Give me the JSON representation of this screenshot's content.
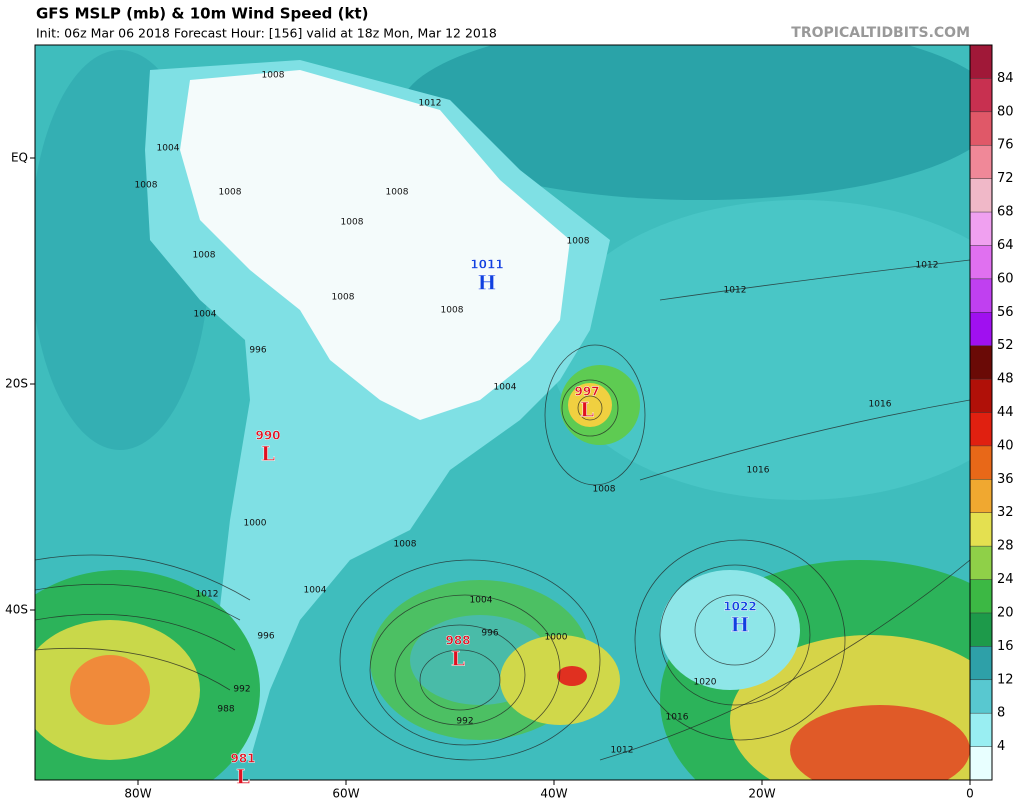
{
  "header": {
    "title": "GFS MSLP (mb) & 10m Wind Speed (kt)",
    "subtitle": "Init: 06z Mar 06 2018   Forecast Hour: [156]   valid at 18z Mon, Mar 12 2018",
    "site": "TROPICALTIDBITS.COM"
  },
  "axes": {
    "longitude": [
      "80W",
      "60W",
      "40W",
      "20W",
      "0"
    ],
    "latitude": [
      "EQ",
      "20S",
      "40S"
    ]
  },
  "colorbar": {
    "ticks": [
      4,
      8,
      12,
      16,
      20,
      24,
      28,
      32,
      36,
      40,
      44,
      48,
      52,
      56,
      60,
      64,
      68,
      72,
      76,
      80,
      84
    ]
  },
  "centers": [
    {
      "letter": "H",
      "value": 1011
    },
    {
      "letter": "L",
      "value": 997
    },
    {
      "letter": "L",
      "value": 990
    },
    {
      "letter": "L",
      "value": 988
    },
    {
      "letter": "H",
      "value": 1022
    },
    {
      "letter": "L",
      "value": 981
    }
  ],
  "isobar_labels": [
    1008,
    1012,
    1004,
    1008,
    1008,
    1008,
    1008,
    1008,
    1012,
    1008,
    1012,
    1008,
    1004,
    1008,
    996,
    1004,
    1016,
    1016,
    1008,
    1000,
    1008,
    1004,
    1004,
    1012,
    996,
    1000,
    996,
    992,
    988,
    992,
    1020,
    1016,
    1012
  ]
}
